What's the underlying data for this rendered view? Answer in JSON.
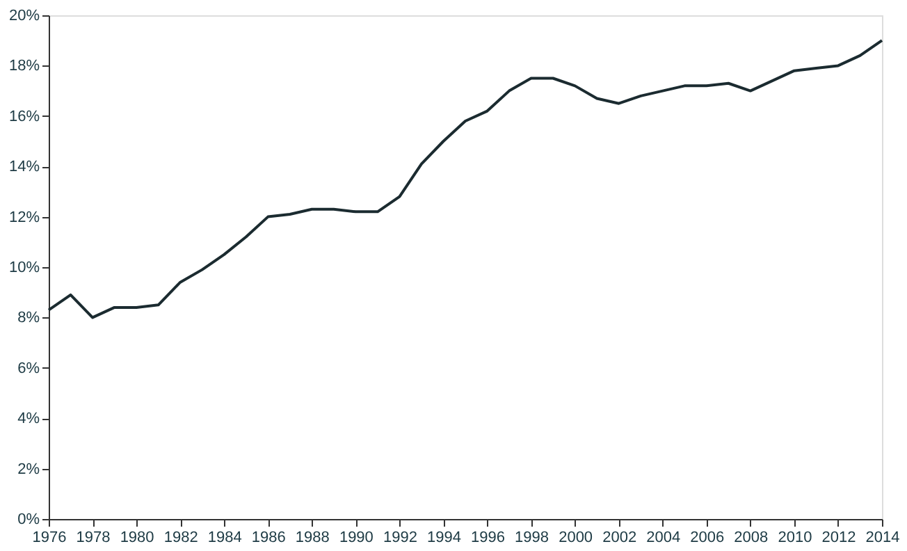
{
  "chart_data": {
    "type": "line",
    "x": [
      1976,
      1977,
      1978,
      1979,
      1980,
      1981,
      1982,
      1983,
      1984,
      1985,
      1986,
      1987,
      1988,
      1989,
      1990,
      1991,
      1992,
      1993,
      1994,
      1995,
      1996,
      1997,
      1998,
      1999,
      2000,
      2001,
      2002,
      2003,
      2004,
      2005,
      2006,
      2007,
      2008,
      2009,
      2010,
      2011,
      2012,
      2013,
      2014
    ],
    "series": [
      {
        "color": "#1b2b30",
        "values": [
          8.3,
          8.9,
          8.0,
          8.4,
          8.4,
          8.5,
          9.4,
          9.9,
          10.5,
          11.2,
          12.0,
          12.1,
          12.3,
          12.3,
          12.2,
          12.2,
          12.8,
          14.1,
          15.0,
          15.8,
          16.2,
          17.0,
          17.5,
          17.5,
          17.2,
          16.7,
          16.5,
          16.8,
          17.0,
          17.2,
          17.2,
          17.3,
          17.0,
          17.4,
          17.8,
          17.9,
          18.0,
          18.4,
          19.0
        ]
      }
    ],
    "xlim": [
      1976,
      2014
    ],
    "xticks": [
      1976,
      1978,
      1980,
      1982,
      1984,
      1986,
      1988,
      1990,
      1992,
      1994,
      1996,
      1998,
      2000,
      2002,
      2004,
      2006,
      2008,
      2010,
      2012,
      2014
    ],
    "ylim": [
      0,
      20
    ],
    "yticks": [
      {
        "value": 0,
        "label": "0%"
      },
      {
        "value": 2,
        "label": "2%"
      },
      {
        "value": 4,
        "label": "4%"
      },
      {
        "value": 6,
        "label": "6%"
      },
      {
        "value": 8,
        "label": "8%"
      },
      {
        "value": 10,
        "label": "10%"
      },
      {
        "value": 12,
        "label": "12%"
      },
      {
        "value": 14,
        "label": "14%"
      },
      {
        "value": 16,
        "label": "16%"
      },
      {
        "value": 18,
        "label": "18%"
      },
      {
        "value": 20,
        "label": "20%"
      }
    ],
    "grid": false,
    "legend": false,
    "marker": "none",
    "line_style": "solid"
  }
}
